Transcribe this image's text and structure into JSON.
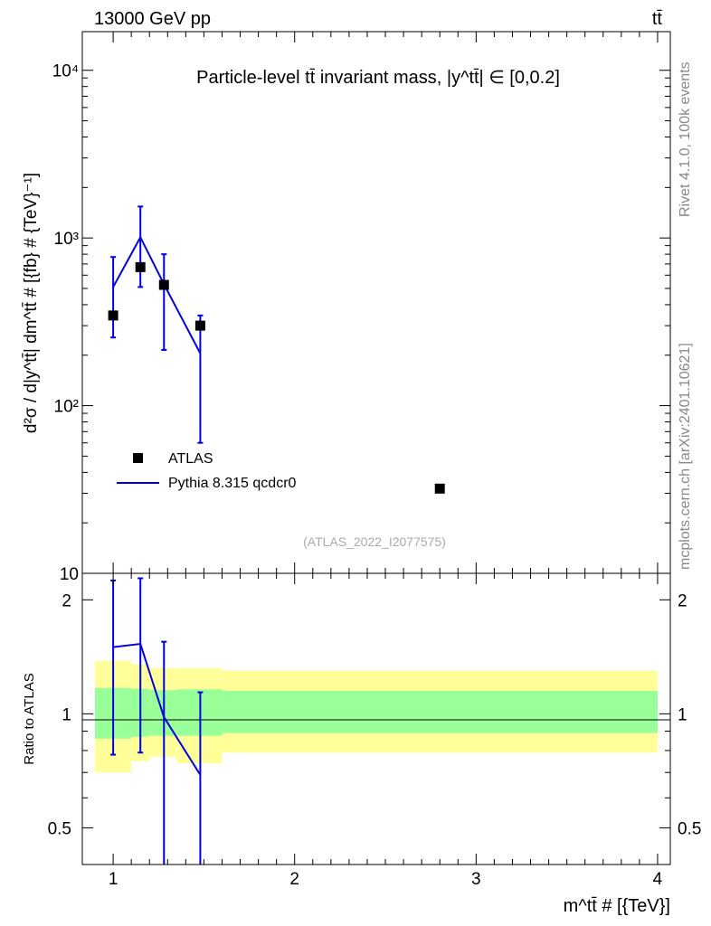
{
  "header": {
    "energy_label": "13000 GeV pp",
    "process_label": "tt̄"
  },
  "side_text": {
    "rivet": "Rivet 4.1.0,  100k events",
    "mcplots": "mcplots.cern.ch [arXiv:2401.10621]"
  },
  "colors": {
    "mc_line": "#0000dd",
    "data_marker": "#000000",
    "band_inner": "#99ff99",
    "band_outer": "#ffff99"
  },
  "chart_data": [
    {
      "type": "scatter",
      "title": "Particle-level tt̄ invariant mass, |y^tt̄| ∈ [0,0.2]",
      "ylabel": "d²σ / d|y^tt̄| dm^tt̄ # [{fb} # {TeV}⁻¹]",
      "yscale": "log",
      "ylim": [
        10,
        17000
      ],
      "xlim": [
        0.83,
        4.07
      ],
      "ytick_labels": [
        "10",
        "10²",
        "10³",
        "10⁴"
      ],
      "reference_id": "(ATLAS_2022_I2077575)",
      "legend": {
        "data": "ATLAS",
        "mc": "Pythia 8.315 qcdcr0",
        "position": "bottom-left"
      },
      "series": [
        {
          "name": "ATLAS",
          "kind": "markers",
          "x": [
            1.0,
            1.15,
            1.28,
            1.48,
            2.8
          ],
          "y": [
            345,
            670,
            525,
            300,
            32
          ]
        },
        {
          "name": "Pythia 8.315 qcdcr0",
          "kind": "line",
          "x": [
            1.0,
            1.15,
            1.28,
            1.48
          ],
          "y": [
            510,
            1010,
            530,
            205
          ],
          "yerr_low": [
            255,
            510,
            215,
            60
          ],
          "yerr_high": [
            770,
            1540,
            800,
            345
          ]
        }
      ]
    },
    {
      "type": "line",
      "ylabel": "Ratio to ATLAS",
      "xlabel": "m^tt̄ # [{TeV}]",
      "ylim": [
        0.4,
        2.35
      ],
      "xlim": [
        0.83,
        4.07
      ],
      "ytick_labels": [
        "0.5",
        "1",
        "2"
      ],
      "xtick_labels": [
        "1",
        "2",
        "3",
        "4"
      ],
      "bands": {
        "edges": [
          0.9,
          1.1,
          1.2,
          1.35,
          1.6,
          4.0
        ],
        "inner_low": [
          0.86,
          0.87,
          0.875,
          0.875,
          0.89
        ],
        "inner_high": [
          1.17,
          1.165,
          1.155,
          1.16,
          1.15
        ],
        "outer_low": [
          0.7,
          0.75,
          0.77,
          0.74,
          0.79
        ],
        "outer_high": [
          1.38,
          1.35,
          1.32,
          1.32,
          1.3
        ]
      },
      "series": [
        {
          "name": "Pythia 8.315 qcdcr0",
          "x": [
            1.0,
            1.15,
            1.28,
            1.48
          ],
          "y": [
            1.5,
            1.53,
            0.98,
            0.69
          ],
          "yerr_low": [
            0.78,
            0.79,
            0.38,
            0.38
          ],
          "yerr_high": [
            2.25,
            2.28,
            1.55,
            1.14
          ]
        }
      ]
    }
  ]
}
